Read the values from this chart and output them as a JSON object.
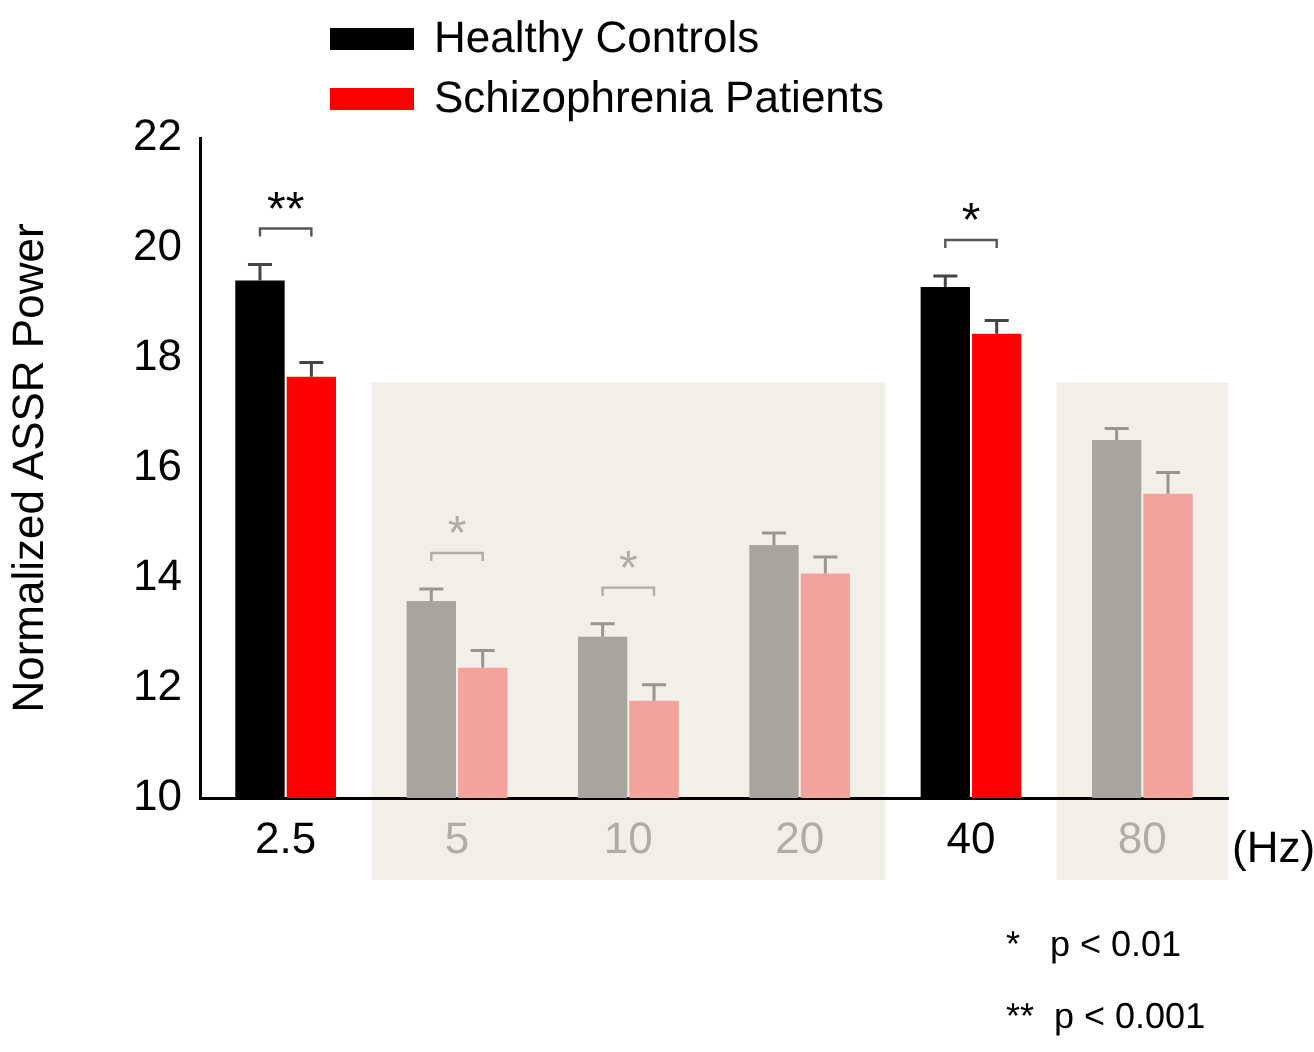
{
  "chart_data": {
    "type": "bar",
    "ylabel": "Normalized ASSR Power",
    "xlabel": "(Hz)",
    "categories": [
      "2.5",
      "5",
      "10",
      "20",
      "40",
      "80"
    ],
    "series": [
      {
        "name": "Healthy Controls",
        "color": "#000000",
        "colors": [
          "#000000",
          "#a8a49e",
          "#a8a49e",
          "#a8a49e",
          "#000000",
          "#a8a49e"
        ],
        "values": [
          19.41,
          13.58,
          12.93,
          14.6,
          19.29,
          16.51
        ],
        "errors": [
          [
            19.41,
            19.7
          ],
          [
            13.58,
            13.8
          ],
          [
            12.93,
            13.17
          ],
          [
            14.6,
            14.82
          ],
          [
            19.29,
            19.49
          ],
          [
            16.51,
            16.72
          ]
        ]
      },
      {
        "name": "Schizophrenia Patients",
        "color": "#ff0000",
        "colors": [
          "#ff0000",
          "#f4a39c",
          "#f4a39c",
          "#f4a39c",
          "#ff0000",
          "#f4a39c"
        ],
        "values": [
          17.66,
          12.37,
          11.77,
          14.08,
          18.44,
          15.53
        ],
        "errors": [
          [
            17.66,
            17.92
          ],
          [
            12.37,
            12.68
          ],
          [
            11.77,
            12.06
          ],
          [
            14.08,
            14.38
          ],
          [
            18.44,
            18.68
          ],
          [
            15.53,
            15.92
          ]
        ]
      }
    ],
    "ylim": [
      10,
      22
    ],
    "yticks": [
      10,
      12,
      14,
      16,
      18,
      20,
      22
    ],
    "bands": [
      {
        "axis": "x",
        "from": "5",
        "to": "20",
        "color": "#f2efe9"
      },
      {
        "axis": "x",
        "from": "80",
        "to": "80",
        "color": "#f2efe9"
      }
    ],
    "annotations": [
      "**",
      "*",
      "*",
      "*",
      "*   p < 0.01",
      "**  p < 0.001"
    ],
    "legend": "top",
    "grid": false
  }
}
